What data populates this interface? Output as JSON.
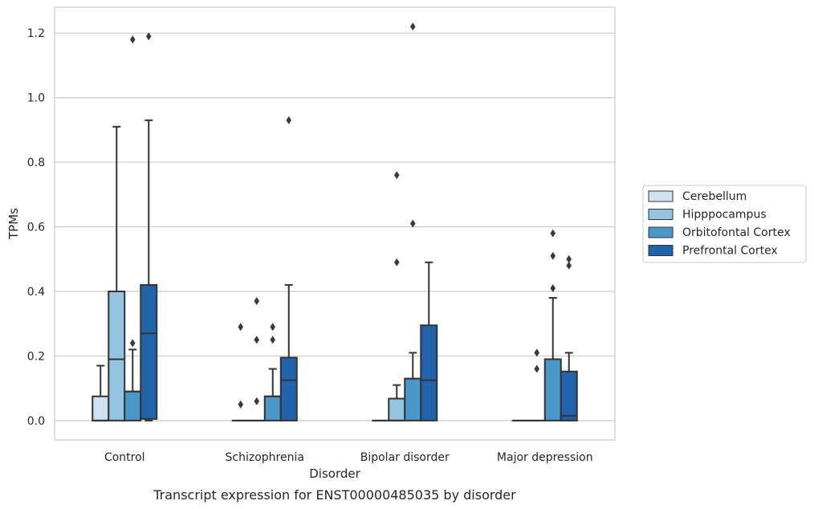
{
  "chart_data": {
    "type": "box",
    "caption": "Transcript expression for ENST00000485035 by disorder",
    "xlabel": "Disorder",
    "ylabel": "TPMs",
    "ylim": [
      -0.06,
      1.28
    ],
    "yticks": [
      0.0,
      0.2,
      0.4,
      0.6,
      0.8,
      1.0,
      1.2
    ],
    "ytick_labels": [
      "0.0",
      "0.2",
      "0.4",
      "0.6",
      "0.8",
      "1.0",
      "1.2"
    ],
    "grid": "horizontal",
    "legend_position": "right",
    "categories": [
      "Control",
      "Schizophrenia",
      "Bipolar disorder",
      "Major depression"
    ],
    "series": [
      {
        "name": "Cerebellum",
        "color": "#d0e1f1",
        "boxes": [
          {
            "whislo": 0.0,
            "q1": 0.0,
            "med": 0.0,
            "q3": 0.075,
            "whishi": 0.17,
            "fliers": []
          },
          {
            "whislo": 0.0,
            "q1": 0.0,
            "med": 0.0,
            "q3": 0.0,
            "whishi": 0.0,
            "fliers": [
              0.05,
              0.29
            ]
          },
          {
            "whislo": 0.0,
            "q1": 0.0,
            "med": 0.0,
            "q3": 0.0,
            "whishi": 0.0,
            "fliers": []
          },
          {
            "whislo": 0.0,
            "q1": 0.0,
            "med": 0.0,
            "q3": 0.0,
            "whishi": 0.0,
            "fliers": []
          }
        ]
      },
      {
        "name": "Hipppocampus",
        "color": "#94c4df",
        "boxes": [
          {
            "whislo": 0.0,
            "q1": 0.0,
            "med": 0.19,
            "q3": 0.4,
            "whishi": 0.91,
            "fliers": []
          },
          {
            "whislo": 0.0,
            "q1": 0.0,
            "med": 0.0,
            "q3": 0.0,
            "whishi": 0.0,
            "fliers": [
              0.06,
              0.25,
              0.37
            ]
          },
          {
            "whislo": 0.0,
            "q1": 0.0,
            "med": 0.0,
            "q3": 0.068,
            "whishi": 0.11,
            "fliers": [
              0.49,
              0.76
            ]
          },
          {
            "whislo": 0.0,
            "q1": 0.0,
            "med": 0.0,
            "q3": 0.0,
            "whishi": 0.0,
            "fliers": [
              0.16,
              0.21
            ]
          }
        ]
      },
      {
        "name": "Orbitofontal Cortex",
        "color": "#4a98c9",
        "boxes": [
          {
            "whislo": 0.0,
            "q1": 0.0,
            "med": 0.09,
            "q3": 0.09,
            "whishi": 0.22,
            "fliers": [
              0.24,
              1.18
            ]
          },
          {
            "whislo": 0.0,
            "q1": 0.0,
            "med": 0.075,
            "q3": 0.075,
            "whishi": 0.16,
            "fliers": [
              0.25,
              0.29
            ]
          },
          {
            "whislo": 0.0,
            "q1": 0.0,
            "med": 0.13,
            "q3": 0.13,
            "whishi": 0.21,
            "fliers": [
              0.61,
              1.22
            ]
          },
          {
            "whislo": 0.0,
            "q1": 0.0,
            "med": 0.19,
            "q3": 0.19,
            "whishi": 0.38,
            "fliers": [
              0.41,
              0.51,
              0.58
            ]
          }
        ]
      },
      {
        "name": "Prefrontal Cortex",
        "color": "#2163aa",
        "boxes": [
          {
            "whislo": 0.0,
            "q1": 0.005,
            "med": 0.27,
            "q3": 0.42,
            "whishi": 0.93,
            "fliers": [
              1.19
            ]
          },
          {
            "whislo": 0.0,
            "q1": 0.0,
            "med": 0.125,
            "q3": 0.195,
            "whishi": 0.42,
            "fliers": [
              0.93
            ]
          },
          {
            "whislo": 0.0,
            "q1": 0.0,
            "med": 0.125,
            "q3": 0.295,
            "whishi": 0.49,
            "fliers": []
          },
          {
            "whislo": 0.0,
            "q1": 0.0,
            "med": 0.015,
            "q3": 0.152,
            "whishi": 0.21,
            "fliers": [
              0.5,
              0.48
            ]
          }
        ]
      }
    ]
  }
}
